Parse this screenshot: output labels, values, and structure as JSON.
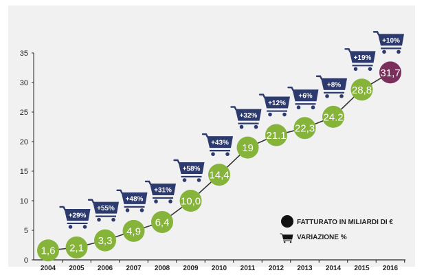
{
  "chart_data": {
    "type": "line",
    "categories": [
      "2004",
      "2005",
      "2006",
      "2007",
      "2008",
      "2009",
      "2010",
      "2011",
      "2012",
      "2013",
      "2014",
      "2015",
      "2016"
    ],
    "values": [
      1.6,
      2.1,
      3.3,
      4.9,
      6.4,
      10.0,
      14.4,
      19,
      21.1,
      22.3,
      24.2,
      28.8,
      31.7
    ],
    "value_labels": [
      "1,6",
      "2,1",
      "3,3",
      "4,9",
      "6,4",
      "10,0",
      "14,4",
      "19",
      "21.1",
      "22,3",
      "24.2",
      "28,8",
      "31,7"
    ],
    "variations": [
      null,
      "+29%",
      "+55%",
      "+48%",
      "+31%",
      "+58%",
      "+43%",
      "+32%",
      "+12%",
      "+6%",
      "+8%",
      "+19%",
      "+10%"
    ],
    "ylim": [
      0,
      35
    ],
    "yticks": [
      0,
      5,
      10,
      15,
      20,
      25,
      30,
      35
    ],
    "grid": false,
    "legend": {
      "position": "bottom-right",
      "entries": [
        {
          "label": "FATTURATO IN MILIARDI DI €",
          "marker": "circle"
        },
        {
          "label": "VARIAZIONE %",
          "marker": "cart-icon"
        }
      ]
    },
    "colors": {
      "bubble": "#86b33a",
      "bubble_last": "#7b2f5c",
      "cart": "#2d3a6e",
      "line": "#333333",
      "axis": "#222222",
      "legend_marker": "#111111"
    }
  }
}
